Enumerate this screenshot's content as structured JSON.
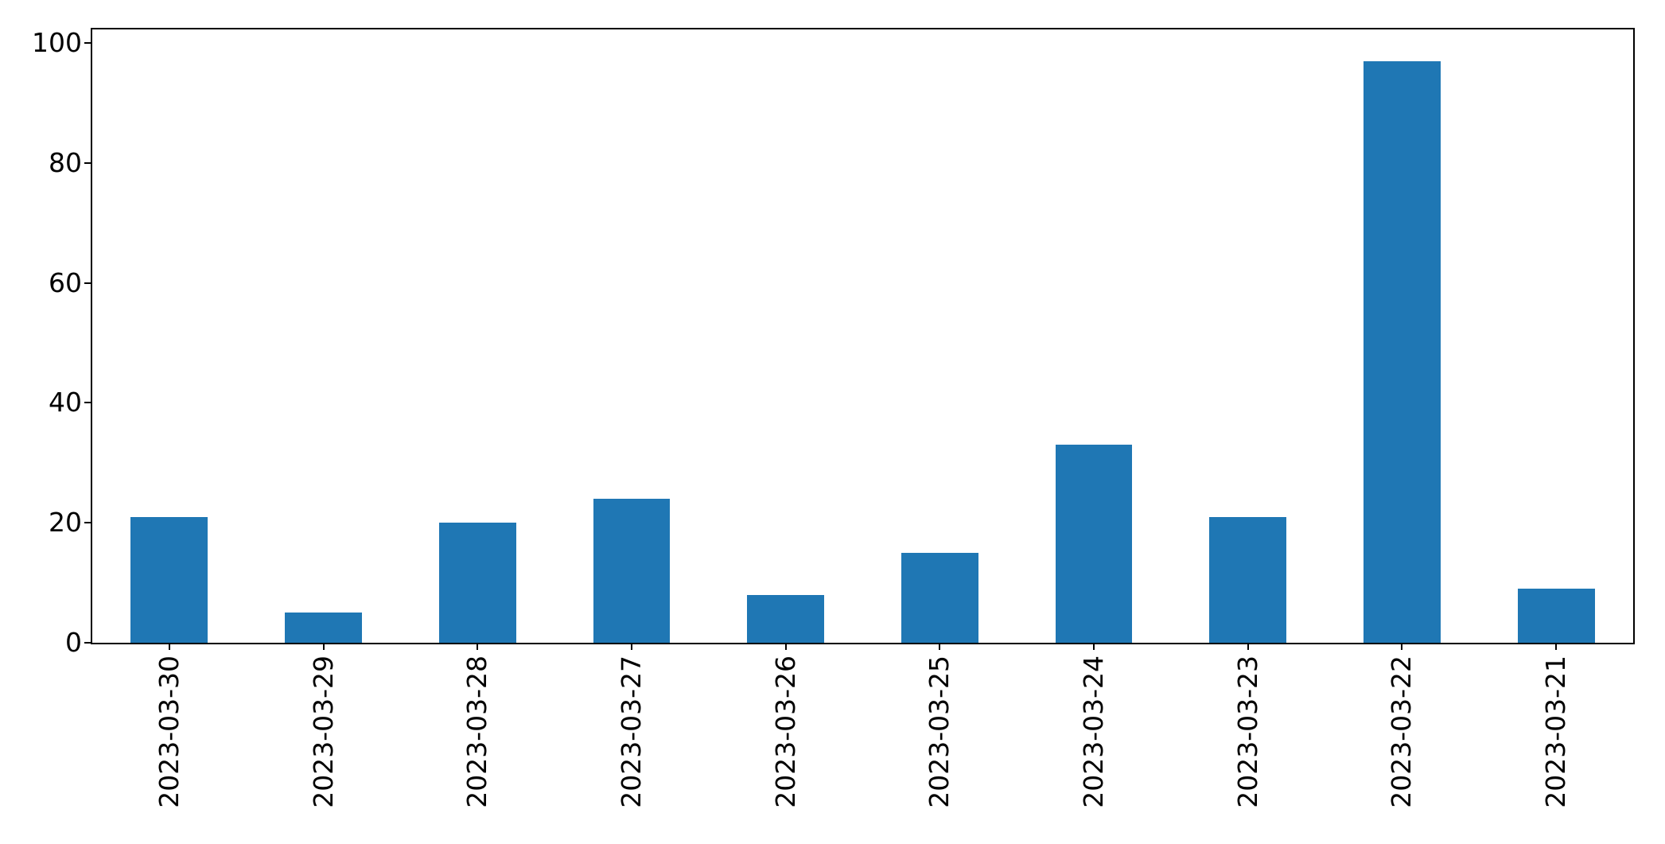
{
  "figure": {
    "background": "#ffffff",
    "text_color": "#000000",
    "spine_color": "#000000"
  },
  "chart_data": {
    "type": "bar",
    "title": "",
    "xlabel": "",
    "ylabel": "",
    "categories": [
      "2023-03-30",
      "2023-03-29",
      "2023-03-28",
      "2023-03-27",
      "2023-03-26",
      "2023-03-25",
      "2023-03-24",
      "2023-03-23",
      "2023-03-22",
      "2023-03-21"
    ],
    "values": [
      21,
      5,
      20,
      24,
      8,
      15,
      33,
      21,
      97,
      9
    ],
    "bar_color": "#1f77b4",
    "yticks": [
      0,
      20,
      40,
      60,
      80,
      100
    ],
    "ylim": [
      0,
      102.25
    ],
    "bar_width_fraction": 0.5,
    "x_tick_label_rotation": 90,
    "grid": false,
    "legend": false
  }
}
